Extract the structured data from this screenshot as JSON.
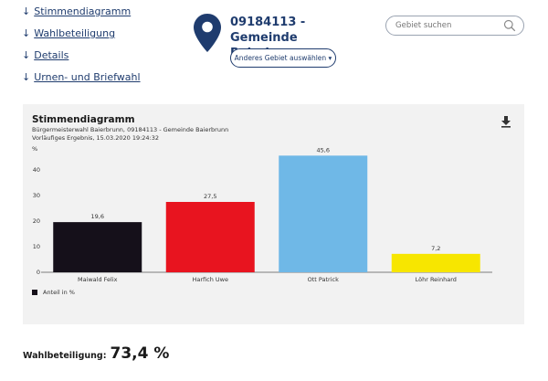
{
  "nav": {
    "items": [
      {
        "label": "Stimmendiagramm"
      },
      {
        "label": "Wahlbeteiligung"
      },
      {
        "label": "Details"
      },
      {
        "label": "Urnen- und Briefwahl"
      }
    ]
  },
  "region": {
    "title": "09184113 - Gemeinde Baierbrunn",
    "change_button": "Anderes Gebiet auswählen ▾"
  },
  "search": {
    "placeholder": "Gebiet suchen"
  },
  "chart_panel": {
    "title": "Stimmendiagramm",
    "subtitle": "Bürgermeisterwahl Baierbrunn, 09184113 - Gemeinde Baierbrunn",
    "status": "Vorläufiges Ergebnis, 15.03.2020 19:24:32",
    "legend": "Anteil in %"
  },
  "chart_data": {
    "type": "bar",
    "categories": [
      "Maiwald Felix",
      "Harfich Uwe",
      "Ott Patrick",
      "Löhr Reinhard"
    ],
    "values": [
      19.6,
      27.5,
      45.6,
      7.2
    ],
    "value_labels": [
      "19,6",
      "27,5",
      "45,6",
      "7,2"
    ],
    "colors": [
      "#15101a",
      "#e8141f",
      "#6fb8e7",
      "#f7e600"
    ],
    "ylabel": "%",
    "yticks": [
      "0",
      "10",
      "20",
      "30",
      "40"
    ],
    "ylim": [
      0,
      50
    ],
    "grid": false,
    "legend_position": "bottom-left"
  },
  "turnout": {
    "label": "Wahlbeteiligung:",
    "value": "73,4 %"
  },
  "colors": {
    "brand": "#1f3c6e",
    "panel_bg": "#f2f2f2"
  }
}
